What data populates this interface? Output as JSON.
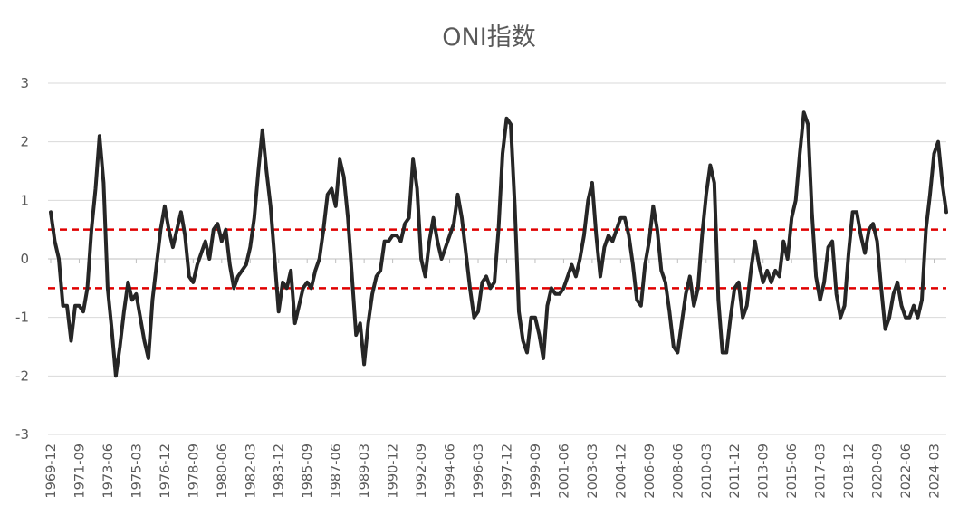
{
  "chart_data": {
    "type": "line",
    "title": "ONI指数",
    "xlabel": "",
    "ylabel": "",
    "ylim": [
      -3,
      3
    ],
    "yticks": [
      "3",
      "2",
      "1",
      "0",
      "-1",
      "-2",
      "-3"
    ],
    "grid": true,
    "legend": "none",
    "xtick_labels": [
      "1969-12",
      "1971-09",
      "1973-06",
      "1975-03",
      "1976-12",
      "1978-09",
      "1980-06",
      "1982-03",
      "1983-12",
      "1985-09",
      "1987-06",
      "1989-03",
      "1990-12",
      "1992-09",
      "1994-06",
      "1996-03",
      "1997-12",
      "1999-09",
      "2001-06",
      "2003-03",
      "2004-12",
      "2006-09",
      "2008-06",
      "2010-03",
      "2011-12",
      "2013-09",
      "2015-06",
      "2017-03",
      "2018-12",
      "2020-09",
      "2022-06",
      "2024-03"
    ],
    "series": [
      {
        "color": "#262626",
        "points": [
          [
            "1969-12",
            0.8
          ],
          [
            "1970-03",
            0.3
          ],
          [
            "1970-06",
            0.0
          ],
          [
            "1970-09",
            -0.8
          ],
          [
            "1970-12",
            -0.8
          ],
          [
            "1971-03",
            -1.4
          ],
          [
            "1971-06",
            -0.8
          ],
          [
            "1971-09",
            -0.8
          ],
          [
            "1971-12",
            -0.9
          ],
          [
            "1972-03",
            -0.5
          ],
          [
            "1972-06",
            0.5
          ],
          [
            "1972-09",
            1.2
          ],
          [
            "1972-12",
            2.1
          ],
          [
            "1973-03",
            1.3
          ],
          [
            "1973-06",
            -0.5
          ],
          [
            "1973-09",
            -1.2
          ],
          [
            "1973-12",
            -2.0
          ],
          [
            "1974-03",
            -1.5
          ],
          [
            "1974-06",
            -0.9
          ],
          [
            "1974-09",
            -0.4
          ],
          [
            "1974-12",
            -0.7
          ],
          [
            "1975-03",
            -0.6
          ],
          [
            "1975-06",
            -1.0
          ],
          [
            "1975-09",
            -1.4
          ],
          [
            "1975-12",
            -1.7
          ],
          [
            "1976-03",
            -0.7
          ],
          [
            "1976-06",
            -0.1
          ],
          [
            "1976-09",
            0.5
          ],
          [
            "1976-12",
            0.9
          ],
          [
            "1977-03",
            0.5
          ],
          [
            "1977-06",
            0.2
          ],
          [
            "1977-09",
            0.5
          ],
          [
            "1977-12",
            0.8
          ],
          [
            "1978-03",
            0.4
          ],
          [
            "1978-06",
            -0.3
          ],
          [
            "1978-09",
            -0.4
          ],
          [
            "1978-12",
            -0.1
          ],
          [
            "1979-03",
            0.1
          ],
          [
            "1979-06",
            0.3
          ],
          [
            "1979-09",
            0.0
          ],
          [
            "1979-12",
            0.5
          ],
          [
            "1980-03",
            0.6
          ],
          [
            "1980-06",
            0.3
          ],
          [
            "1980-09",
            0.5
          ],
          [
            "1980-12",
            -0.1
          ],
          [
            "1981-03",
            -0.5
          ],
          [
            "1981-06",
            -0.3
          ],
          [
            "1981-09",
            -0.2
          ],
          [
            "1981-12",
            -0.1
          ],
          [
            "1982-03",
            0.2
          ],
          [
            "1982-06",
            0.7
          ],
          [
            "1982-09",
            1.5
          ],
          [
            "1982-12",
            2.2
          ],
          [
            "1983-03",
            1.5
          ],
          [
            "1983-06",
            0.9
          ],
          [
            "1983-09",
            0.0
          ],
          [
            "1983-12",
            -0.9
          ],
          [
            "1984-03",
            -0.4
          ],
          [
            "1984-06",
            -0.5
          ],
          [
            "1984-09",
            -0.2
          ],
          [
            "1984-12",
            -1.1
          ],
          [
            "1985-03",
            -0.8
          ],
          [
            "1985-06",
            -0.5
          ],
          [
            "1985-09",
            -0.4
          ],
          [
            "1985-12",
            -0.5
          ],
          [
            "1986-03",
            -0.2
          ],
          [
            "1986-06",
            0.0
          ],
          [
            "1986-09",
            0.5
          ],
          [
            "1986-12",
            1.1
          ],
          [
            "1987-03",
            1.2
          ],
          [
            "1987-06",
            0.9
          ],
          [
            "1987-09",
            1.7
          ],
          [
            "1987-12",
            1.4
          ],
          [
            "1988-03",
            0.7
          ],
          [
            "1988-06",
            -0.3
          ],
          [
            "1988-09",
            -1.3
          ],
          [
            "1988-12",
            -1.1
          ],
          [
            "1989-03",
            -1.8
          ],
          [
            "1989-06",
            -1.1
          ],
          [
            "1989-09",
            -0.6
          ],
          [
            "1989-12",
            -0.3
          ],
          [
            "1990-03",
            -0.2
          ],
          [
            "1990-06",
            0.3
          ],
          [
            "1990-09",
            0.3
          ],
          [
            "1990-12",
            0.4
          ],
          [
            "1991-03",
            0.4
          ],
          [
            "1991-06",
            0.3
          ],
          [
            "1991-09",
            0.6
          ],
          [
            "1991-12",
            0.7
          ],
          [
            "1992-03",
            1.7
          ],
          [
            "1992-06",
            1.2
          ],
          [
            "1992-09",
            0.0
          ],
          [
            "1992-12",
            -0.3
          ],
          [
            "1993-03",
            0.3
          ],
          [
            "1993-06",
            0.7
          ],
          [
            "1993-09",
            0.3
          ],
          [
            "1993-12",
            0.0
          ],
          [
            "1994-03",
            0.2
          ],
          [
            "1994-06",
            0.4
          ],
          [
            "1994-09",
            0.6
          ],
          [
            "1994-12",
            1.1
          ],
          [
            "1995-03",
            0.7
          ],
          [
            "1995-06",
            0.1
          ],
          [
            "1995-09",
            -0.5
          ],
          [
            "1995-12",
            -1.0
          ],
          [
            "1996-03",
            -0.9
          ],
          [
            "1996-06",
            -0.4
          ],
          [
            "1996-09",
            -0.3
          ],
          [
            "1996-12",
            -0.5
          ],
          [
            "1997-03",
            -0.4
          ],
          [
            "1997-06",
            0.5
          ],
          [
            "1997-09",
            1.8
          ],
          [
            "1997-12",
            2.4
          ],
          [
            "1998-03",
            2.3
          ],
          [
            "1998-06",
            0.9
          ],
          [
            "1998-09",
            -0.9
          ],
          [
            "1998-12",
            -1.4
          ],
          [
            "1999-03",
            -1.6
          ],
          [
            "1999-06",
            -1.0
          ],
          [
            "1999-09",
            -1.0
          ],
          [
            "1999-12",
            -1.3
          ],
          [
            "2000-03",
            -1.7
          ],
          [
            "2000-06",
            -0.8
          ],
          [
            "2000-09",
            -0.5
          ],
          [
            "2000-12",
            -0.6
          ],
          [
            "2001-03",
            -0.6
          ],
          [
            "2001-06",
            -0.5
          ],
          [
            "2001-09",
            -0.3
          ],
          [
            "2001-12",
            -0.1
          ],
          [
            "2002-03",
            -0.3
          ],
          [
            "2002-06",
            0.0
          ],
          [
            "2002-09",
            0.4
          ],
          [
            "2002-12",
            1.0
          ],
          [
            "2003-03",
            1.3
          ],
          [
            "2003-06",
            0.4
          ],
          [
            "2003-09",
            -0.3
          ],
          [
            "2003-12",
            0.2
          ],
          [
            "2004-03",
            0.4
          ],
          [
            "2004-06",
            0.3
          ],
          [
            "2004-09",
            0.5
          ],
          [
            "2004-12",
            0.7
          ],
          [
            "2005-03",
            0.7
          ],
          [
            "2005-06",
            0.4
          ],
          [
            "2005-09",
            -0.1
          ],
          [
            "2005-12",
            -0.7
          ],
          [
            "2006-03",
            -0.8
          ],
          [
            "2006-06",
            -0.1
          ],
          [
            "2006-09",
            0.3
          ],
          [
            "2006-12",
            0.9
          ],
          [
            "2007-03",
            0.5
          ],
          [
            "2007-06",
            -0.2
          ],
          [
            "2007-09",
            -0.4
          ],
          [
            "2007-12",
            -0.9
          ],
          [
            "2008-03",
            -1.5
          ],
          [
            "2008-06",
            -1.6
          ],
          [
            "2008-09",
            -1.1
          ],
          [
            "2008-12",
            -0.6
          ],
          [
            "2009-03",
            -0.3
          ],
          [
            "2009-06",
            -0.8
          ],
          [
            "2009-09",
            -0.5
          ],
          [
            "2009-12",
            0.4
          ],
          [
            "2010-03",
            1.1
          ],
          [
            "2010-06",
            1.6
          ],
          [
            "2010-09",
            1.3
          ],
          [
            "2010-12",
            -0.7
          ],
          [
            "2011-03",
            -1.6
          ],
          [
            "2011-06",
            -1.6
          ],
          [
            "2011-09",
            -1.0
          ],
          [
            "2011-12",
            -0.5
          ],
          [
            "2012-03",
            -0.4
          ],
          [
            "2012-06",
            -1.0
          ],
          [
            "2012-09",
            -0.8
          ],
          [
            "2012-12",
            -0.2
          ],
          [
            "2013-03",
            0.3
          ],
          [
            "2013-06",
            -0.1
          ],
          [
            "2013-09",
            -0.4
          ],
          [
            "2013-12",
            -0.2
          ],
          [
            "2014-03",
            -0.4
          ],
          [
            "2014-06",
            -0.2
          ],
          [
            "2014-09",
            -0.3
          ],
          [
            "2014-12",
            0.3
          ],
          [
            "2015-03",
            0.0
          ],
          [
            "2015-06",
            0.7
          ],
          [
            "2015-09",
            1.0
          ],
          [
            "2015-12",
            1.8
          ],
          [
            "2016-03",
            2.5
          ],
          [
            "2016-06",
            2.3
          ],
          [
            "2016-09",
            0.8
          ],
          [
            "2016-12",
            -0.3
          ],
          [
            "2017-03",
            -0.7
          ],
          [
            "2017-06",
            -0.4
          ],
          [
            "2017-09",
            0.2
          ],
          [
            "2017-12",
            0.3
          ],
          [
            "2018-03",
            -0.6
          ],
          [
            "2018-06",
            -1.0
          ],
          [
            "2018-09",
            -0.8
          ],
          [
            "2018-12",
            0.1
          ],
          [
            "2019-03",
            0.8
          ],
          [
            "2019-06",
            0.8
          ],
          [
            "2019-09",
            0.4
          ],
          [
            "2019-12",
            0.1
          ],
          [
            "2020-03",
            0.5
          ],
          [
            "2020-06",
            0.6
          ],
          [
            "2020-09",
            0.3
          ],
          [
            "2020-12",
            -0.5
          ],
          [
            "2021-03",
            -1.2
          ],
          [
            "2021-06",
            -1.0
          ],
          [
            "2021-09",
            -0.6
          ],
          [
            "2021-12",
            -0.4
          ],
          [
            "2022-03",
            -0.8
          ],
          [
            "2022-06",
            -1.0
          ],
          [
            "2022-09",
            -1.0
          ],
          [
            "2022-12",
            -0.8
          ],
          [
            "2023-03",
            -1.0
          ],
          [
            "2023-06",
            -0.7
          ],
          [
            "2023-09",
            0.5
          ],
          [
            "2023-12",
            1.1
          ],
          [
            "2024-03",
            1.8
          ],
          [
            "2024-06",
            2.0
          ],
          [
            "2024-09",
            1.3
          ],
          [
            "2024-12",
            0.8
          ]
        ]
      }
    ],
    "reference_lines": [
      {
        "y": 0.5,
        "color": "#e00000",
        "style": "dashed"
      },
      {
        "y": -0.5,
        "color": "#e00000",
        "style": "dashed"
      }
    ],
    "axis_color": "#bfbfbf",
    "grid_color": "#d9d9d9",
    "text_color": "#595959"
  }
}
